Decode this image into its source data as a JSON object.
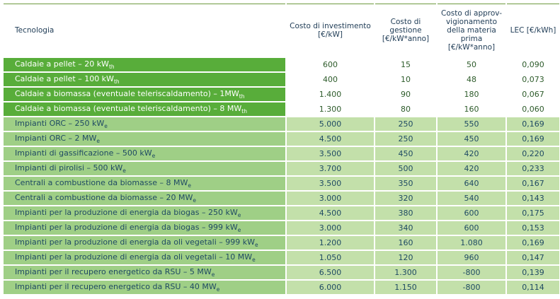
{
  "headers": {
    "tecnologia": "Tecnologia",
    "investimento": "Costo di investimento [€/kW]",
    "gestione": "Costo di gestione [€/kW*anno]",
    "approvvigionamento": "Costo di approv-vigionamento della materia prima [€/kW*anno]",
    "lec": "LEC [€/kWh]"
  },
  "rows": [
    {
      "name": "Caldaie a pellet – 20 kW",
      "sub": "th",
      "investimento": "600",
      "gestione": "15",
      "approvvigionamento": "50",
      "lec": "0,090",
      "group": "dark"
    },
    {
      "name": "Caldaie a pellet – 100 kW",
      "sub": "th",
      "investimento": "400",
      "gestione": "10",
      "approvvigionamento": "48",
      "lec": "0,073",
      "group": "dark"
    },
    {
      "name": "Caldaie a biomassa (eventuale teleriscaldamento) – 1MW",
      "sub": "th",
      "investimento": "1.400",
      "gestione": "90",
      "approvvigionamento": "180",
      "lec": "0,067",
      "group": "dark"
    },
    {
      "name": "Caldaie a biomassa (eventuale teleriscaldamento) – 8 MW",
      "sub": "th",
      "investimento": "1.300",
      "gestione": "80",
      "approvvigionamento": "160",
      "lec": "0,060",
      "group": "dark"
    },
    {
      "name": "Impianti ORC – 250 kW",
      "sub": "e",
      "investimento": "5.000",
      "gestione": "250",
      "approvvigionamento": "550",
      "lec": "0,169",
      "group": "light"
    },
    {
      "name": "Impianti ORC – 2 MW",
      "sub": "e",
      "investimento": "4.500",
      "gestione": "250",
      "approvvigionamento": "450",
      "lec": "0,169",
      "group": "light"
    },
    {
      "name": "Impianti di gassificazione – 500 kW",
      "sub": "e",
      "investimento": "3.500",
      "gestione": "450",
      "approvvigionamento": "420",
      "lec": "0,220",
      "group": "light"
    },
    {
      "name": "Impianti di pirolisi – 500 kW",
      "sub": "e",
      "investimento": "3.700",
      "gestione": "500",
      "approvvigionamento": "420",
      "lec": "0,233",
      "group": "light"
    },
    {
      "name": "Centrali a combustione da biomasse – 8 MW",
      "sub": "e",
      "investimento": "3.500",
      "gestione": "350",
      "approvvigionamento": "640",
      "lec": "0,167",
      "group": "light"
    },
    {
      "name": "Centrali a combustione da biomasse – 20 MW",
      "sub": "e",
      "investimento": "3.000",
      "gestione": "320",
      "approvvigionamento": "540",
      "lec": "0,143",
      "group": "light"
    },
    {
      "name": "Impianti per la produzione di energia da biogas – 250 kW",
      "sub": "e",
      "investimento": "4.500",
      "gestione": "380",
      "approvvigionamento": "600",
      "lec": "0,175",
      "group": "light"
    },
    {
      "name": "Impianti per la produzione di energia da biogas  – 999 kW",
      "sub": "e",
      "investimento": "3.000",
      "gestione": "340",
      "approvvigionamento": "600",
      "lec": "0,153",
      "group": "light"
    },
    {
      "name": "Impianti per la produzione di energia da oli vegetali – 999 kW",
      "sub": "e",
      "investimento": "1.200",
      "gestione": "160",
      "approvvigionamento": "1.080",
      "lec": "0,169",
      "group": "light"
    },
    {
      "name": "Impianti per la produzione di energia da oli vegetali – 10 MW",
      "sub": "e",
      "investimento": "1.050",
      "gestione": "120",
      "approvvigionamento": "960",
      "lec": "0,147",
      "group": "light"
    },
    {
      "name": "Impianti per il recupero energetico da RSU – 5 MW",
      "sub": "e",
      "investimento": "6.500",
      "gestione": "1.300",
      "approvvigionamento": "-800",
      "lec": "0,139",
      "group": "light"
    },
    {
      "name": "Impianti per il recupero energetico da RSU – 40 MW",
      "sub": "e",
      "investimento": "6.000",
      "gestione": "1.150",
      "approvvigionamento": "-800",
      "lec": "0,114",
      "group": "light"
    }
  ],
  "colors": {
    "dark_green": "#58ad3a",
    "light_green": "#9fcf86",
    "light_green_cells": "#c3e0aa",
    "header_text": "#1e3b55"
  }
}
